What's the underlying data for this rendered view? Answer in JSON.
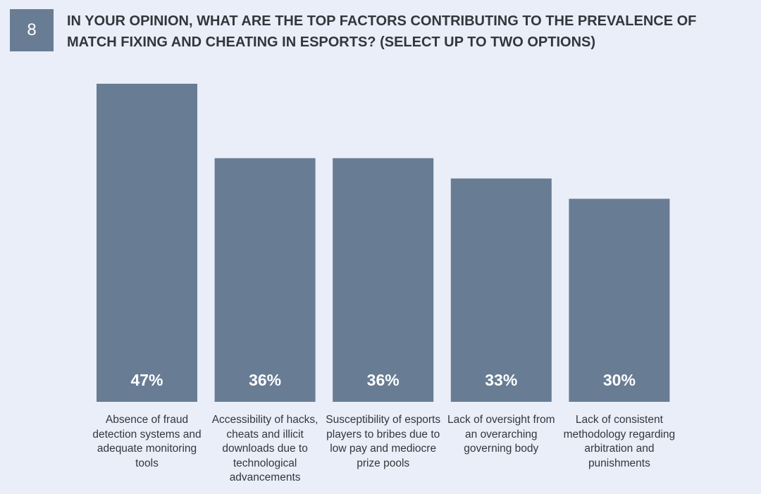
{
  "question": {
    "number": "8",
    "title": "In your opinion, what are the top factors contributing to the prevalence of match fixing and cheating in esports? (Select up to two options)"
  },
  "colors": {
    "background": "#e9eef8",
    "bar": "#687c94",
    "badge": "#687c94",
    "text": "#33363c"
  },
  "chart_data": {
    "type": "bar",
    "title": "In your opinion, what are the top factors contributing to the prevalence of match fixing and cheating in esports? (Select up to two options)",
    "xlabel": "",
    "ylabel": "",
    "ylim": [
      0,
      47
    ],
    "unit": "%",
    "grid": false,
    "categories": [
      "Absence of fraud detection systems and adequate monitoring tools",
      "Accessibility of hacks, cheats and illicit downloads due to technological advancements",
      "Susceptibility of esports players to bribes due to low pay and mediocre prize pools",
      "Lack of oversight from an overarching governing body",
      "Lack of consistent methodology regarding arbitration and punishments"
    ],
    "values": [
      47,
      36,
      36,
      33,
      30
    ],
    "value_labels": [
      "47%",
      "36%",
      "36%",
      "33%",
      "30%"
    ]
  }
}
